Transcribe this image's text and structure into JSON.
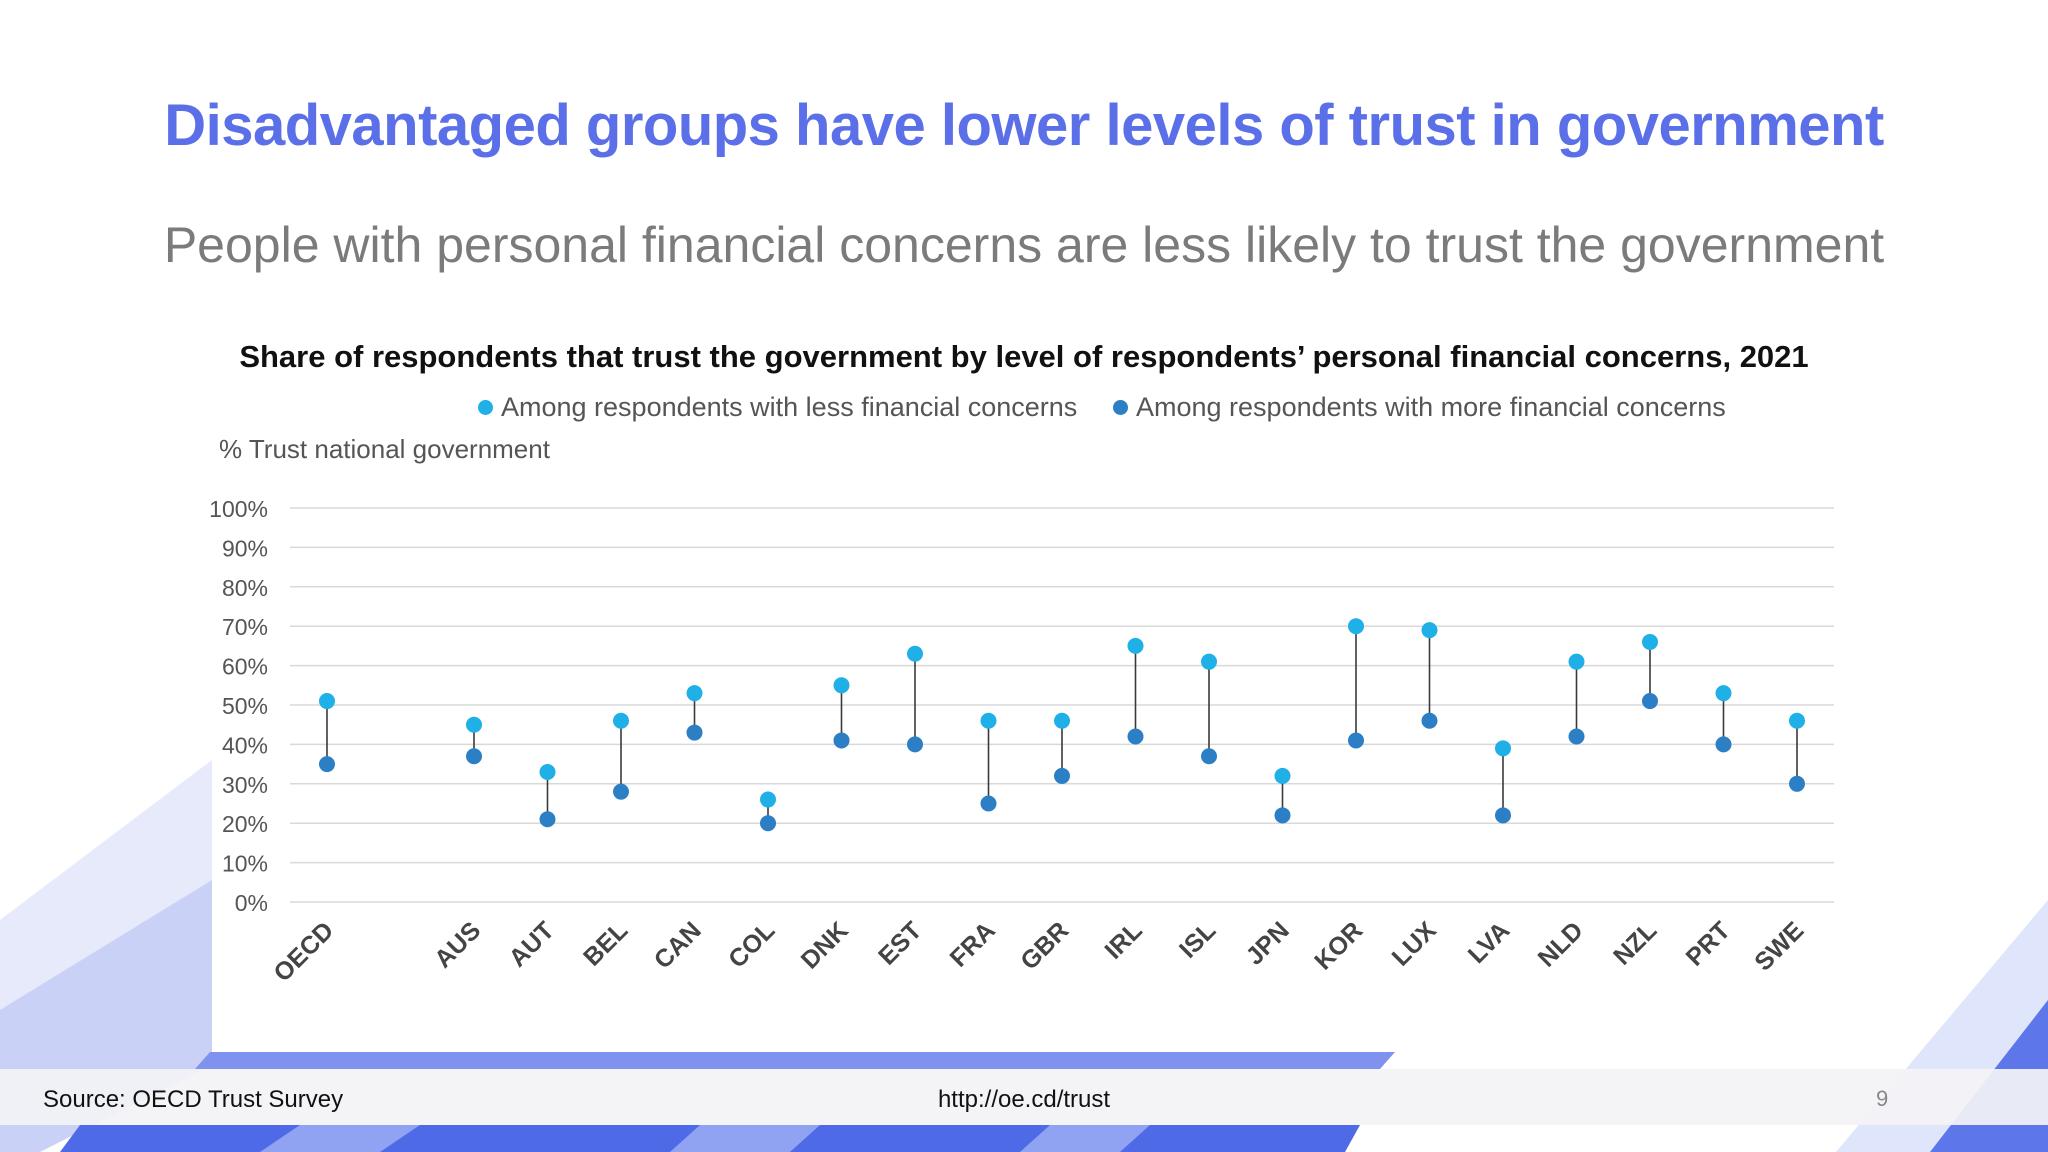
{
  "slide": {
    "title": "Disadvantaged groups have lower levels of trust in government",
    "subtitle": "People with personal financial concerns are less likely to trust the government"
  },
  "chart_data": {
    "type": "scatter",
    "title": "Share of respondents that trust the government by level of respondents’ personal financial concerns, 2021",
    "ylabel": "% Trust national government",
    "xlabel": "",
    "ylim": [
      0,
      100
    ],
    "ytick_step": 10,
    "ytick_suffix": "%",
    "grid": true,
    "legend_position": "top",
    "categories": [
      "OECD",
      "AUS",
      "AUT",
      "BEL",
      "CAN",
      "COL",
      "DNK",
      "EST",
      "FRA",
      "GBR",
      "IRL",
      "ISL",
      "JPN",
      "KOR",
      "LUX",
      "LVA",
      "NLD",
      "NZL",
      "PRT",
      "SWE"
    ],
    "series": [
      {
        "name": "Among respondents with less financial concerns",
        "color": "#1fb0e8",
        "values": [
          51,
          45,
          33,
          46,
          53,
          26,
          55,
          63,
          46,
          46,
          65,
          61,
          32,
          70,
          69,
          39,
          61,
          66,
          53,
          46
        ]
      },
      {
        "name": "Among respondents with more financial concerns",
        "color": "#2c7fc4",
        "values": [
          35,
          37,
          21,
          28,
          43,
          20,
          41,
          40,
          25,
          32,
          42,
          37,
          22,
          41,
          46,
          22,
          42,
          51,
          40,
          30
        ]
      }
    ]
  },
  "footer": {
    "source": "Source: OECD Trust Survey",
    "link": "http://oe.cd/trust",
    "page_number": "9"
  }
}
